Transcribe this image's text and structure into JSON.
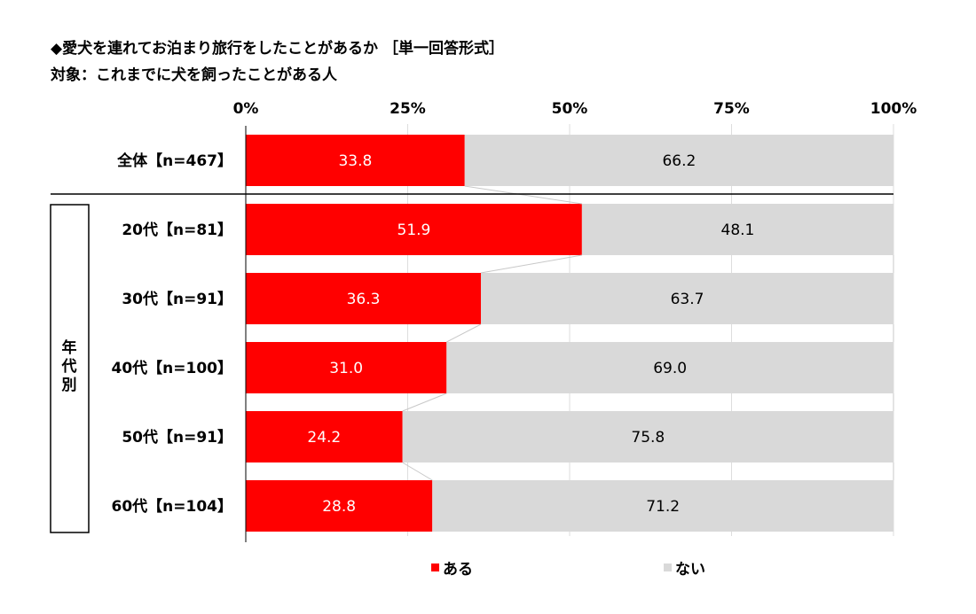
{
  "title_line1": "◆愛犬を連れてお泊まり旅行をしたことがあるか ［単一回答形式］",
  "title_line2": "対象：これまでに犬を飼ったことがある人",
  "chart_data": {
    "type": "bar",
    "orientation": "horizontal",
    "stacked": true,
    "percent_axis": true,
    "xlim": [
      0,
      100
    ],
    "x_ticks": [
      "0%",
      "25%",
      "50%",
      "75%",
      "100%"
    ],
    "group_label": "年代別",
    "categories": [
      "全体【n=467】",
      "20代【n=81】",
      "30代【n=91】",
      "40代【n=100】",
      "50代【n=91】",
      "60代【n=104】"
    ],
    "series": [
      {
        "name": "ある",
        "color": "#ff0000",
        "values": [
          33.8,
          51.9,
          36.3,
          31.0,
          24.2,
          28.8
        ],
        "labels": [
          "33.8",
          "51.9",
          "36.3",
          "31.0",
          "24.2",
          "28.8"
        ]
      },
      {
        "name": "ない",
        "color": "#d9d9d9",
        "values": [
          66.2,
          48.1,
          63.7,
          69.0,
          75.8,
          71.2
        ],
        "labels": [
          "66.2",
          "48.1",
          "63.7",
          "69.0",
          "75.8",
          "71.2"
        ]
      }
    ],
    "legend_position": "bottom"
  }
}
